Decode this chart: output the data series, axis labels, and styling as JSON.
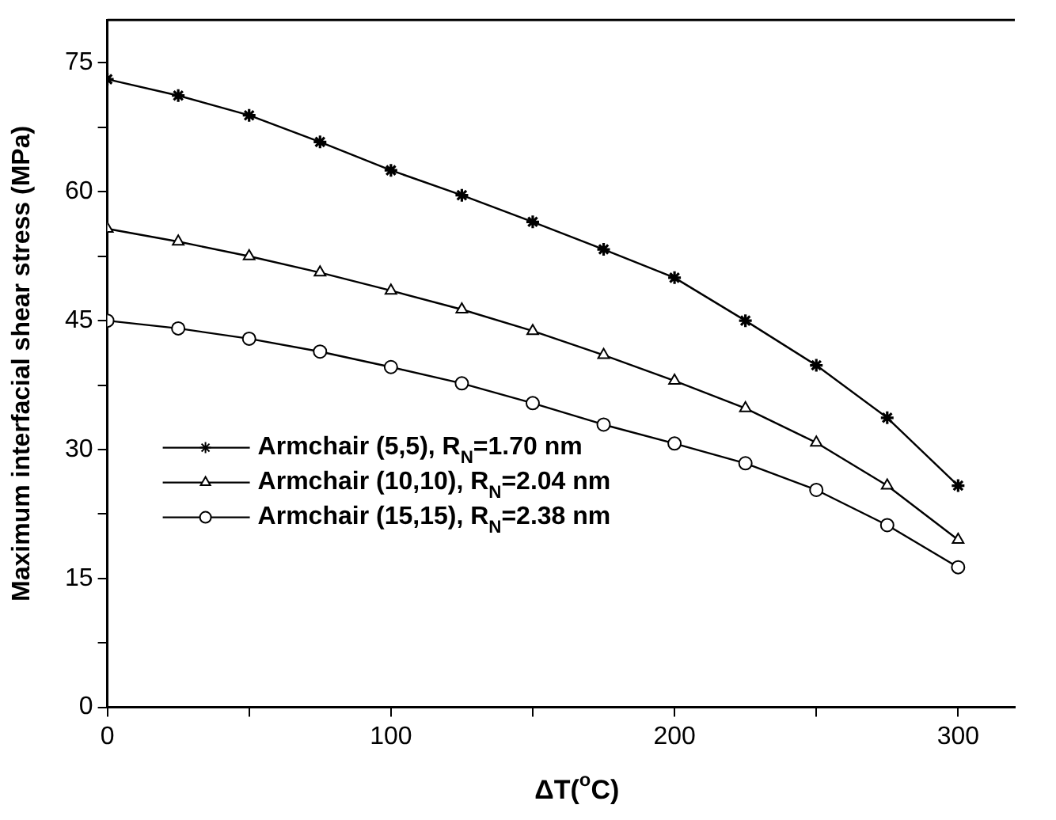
{
  "chart_data": {
    "type": "line",
    "xlabel": "ΔT($^{o}$C)",
    "ylabel": "Maximum interfacial shear stress (MPa)",
    "x": [
      0,
      25,
      50,
      75,
      100,
      125,
      150,
      175,
      200,
      225,
      250,
      275,
      300
    ],
    "series": [
      {
        "name": "Armchair (5,5), R$_{N}$=1.70 nm",
        "color": "#000000",
        "marker": "cross",
        "values": [
          73.1,
          71.2,
          68.9,
          65.8,
          62.5,
          59.6,
          56.5,
          53.3,
          50.0,
          45.0,
          39.8,
          33.7,
          25.8
        ]
      },
      {
        "name": "Armchair (10,10), R$_{N}$=2.04 nm",
        "color": "#000000",
        "marker": "triangle",
        "values": [
          55.7,
          54.2,
          52.5,
          50.6,
          48.5,
          46.3,
          43.8,
          41.0,
          38.0,
          34.8,
          30.8,
          25.8,
          19.5
        ]
      },
      {
        "name": "Armchair (15,15), R$_{N}$=2.38 nm",
        "color": "#000000",
        "marker": "circle",
        "values": [
          45.0,
          44.1,
          42.9,
          41.4,
          39.6,
          37.7,
          35.4,
          32.9,
          30.7,
          28.4,
          25.3,
          21.2,
          16.3
        ]
      }
    ],
    "xlim": [
      0,
      320
    ],
    "xticks": [
      0,
      {
        "value": 50,
        "label": null
      },
      100,
      {
        "value": 150,
        "label": null
      },
      200,
      {
        "value": 250,
        "label": null
      },
      300
    ],
    "ylim": [
      0,
      80
    ],
    "yticks": [
      0,
      {
        "value": 7.5,
        "label": null
      },
      15,
      {
        "value": 22.5,
        "label": null
      },
      30,
      {
        "value": 37.5,
        "label": null
      },
      45,
      {
        "value": 52.5,
        "label": null
      },
      60,
      {
        "value": 67.5,
        "label": null
      },
      75
    ],
    "grid": false,
    "legend": "bottom left",
    "line_style": "solid"
  }
}
